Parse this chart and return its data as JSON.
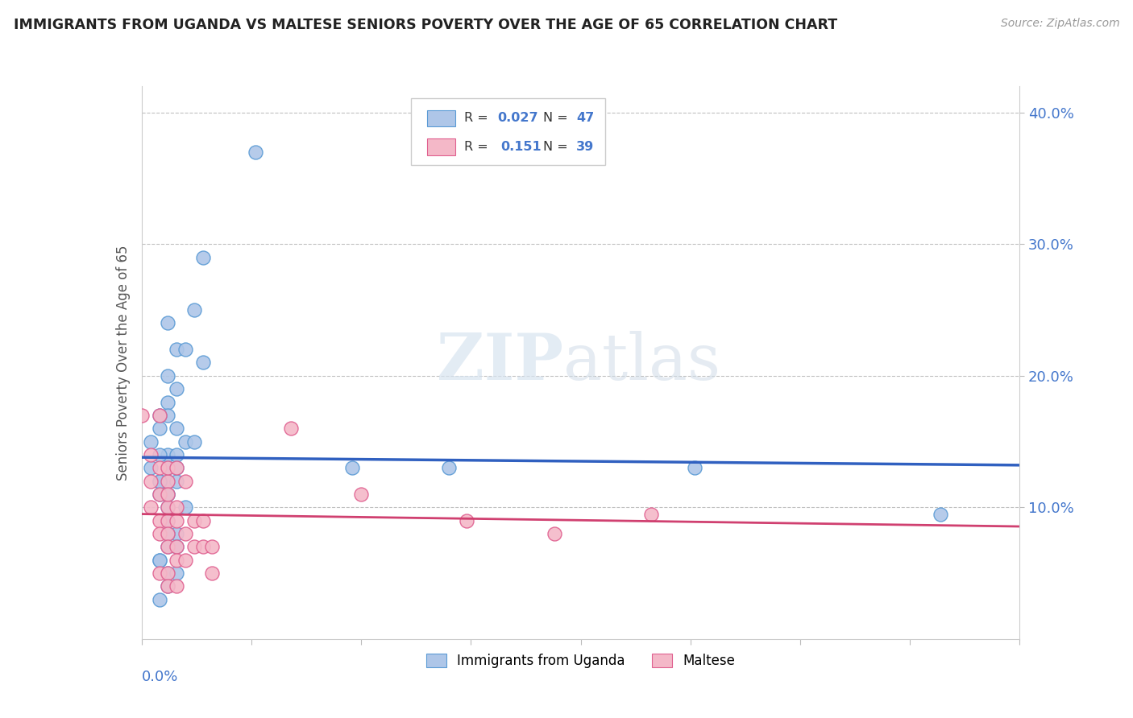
{
  "title": "IMMIGRANTS FROM UGANDA VS MALTESE SENIORS POVERTY OVER THE AGE OF 65 CORRELATION CHART",
  "source": "Source: ZipAtlas.com",
  "ylabel": "Seniors Poverty Over the Age of 65",
  "xmin": 0.0,
  "xmax": 0.1,
  "ymin": 0.0,
  "ymax": 0.42,
  "blue_color": "#aec6e8",
  "blue_edge_color": "#5b9bd5",
  "pink_color": "#f4b8c8",
  "pink_edge_color": "#e06090",
  "blue_line_color": "#3060c0",
  "pink_line_color": "#d04070",
  "axis_label_color": "#4477cc",
  "title_color": "#222222",
  "background_color": "#ffffff",
  "uganda_x": [
    0.013,
    0.003,
    0.004,
    0.006,
    0.003,
    0.004,
    0.003,
    0.005,
    0.003,
    0.004,
    0.002,
    0.002,
    0.001,
    0.003,
    0.002,
    0.001,
    0.003,
    0.004,
    0.003,
    0.002,
    0.003,
    0.004,
    0.002,
    0.003,
    0.004,
    0.002,
    0.003,
    0.003,
    0.004,
    0.005,
    0.003,
    0.002,
    0.003,
    0.004,
    0.003,
    0.024,
    0.005,
    0.006,
    0.007,
    0.007,
    0.035,
    0.063,
    0.091,
    0.003,
    0.004,
    0.002,
    0.002
  ],
  "uganda_y": [
    0.37,
    0.24,
    0.22,
    0.25,
    0.2,
    0.19,
    0.18,
    0.22,
    0.17,
    0.16,
    0.17,
    0.16,
    0.15,
    0.14,
    0.14,
    0.13,
    0.13,
    0.14,
    0.12,
    0.12,
    0.11,
    0.12,
    0.11,
    0.11,
    0.13,
    0.12,
    0.1,
    0.09,
    0.08,
    0.1,
    0.07,
    0.06,
    0.05,
    0.05,
    0.04,
    0.13,
    0.15,
    0.15,
    0.21,
    0.29,
    0.13,
    0.13,
    0.095,
    0.08,
    0.07,
    0.06,
    0.03
  ],
  "maltese_x": [
    0.0,
    0.001,
    0.001,
    0.001,
    0.002,
    0.002,
    0.002,
    0.002,
    0.002,
    0.003,
    0.003,
    0.003,
    0.003,
    0.003,
    0.003,
    0.003,
    0.004,
    0.004,
    0.004,
    0.004,
    0.004,
    0.005,
    0.005,
    0.005,
    0.006,
    0.006,
    0.007,
    0.007,
    0.008,
    0.008,
    0.017,
    0.025,
    0.037,
    0.047,
    0.058,
    0.002,
    0.003,
    0.003,
    0.004
  ],
  "maltese_y": [
    0.17,
    0.14,
    0.12,
    0.1,
    0.13,
    0.11,
    0.09,
    0.08,
    0.17,
    0.12,
    0.1,
    0.09,
    0.08,
    0.07,
    0.13,
    0.11,
    0.1,
    0.09,
    0.07,
    0.13,
    0.06,
    0.12,
    0.08,
    0.06,
    0.09,
    0.07,
    0.09,
    0.07,
    0.07,
    0.05,
    0.16,
    0.11,
    0.09,
    0.08,
    0.095,
    0.05,
    0.05,
    0.04,
    0.04
  ]
}
